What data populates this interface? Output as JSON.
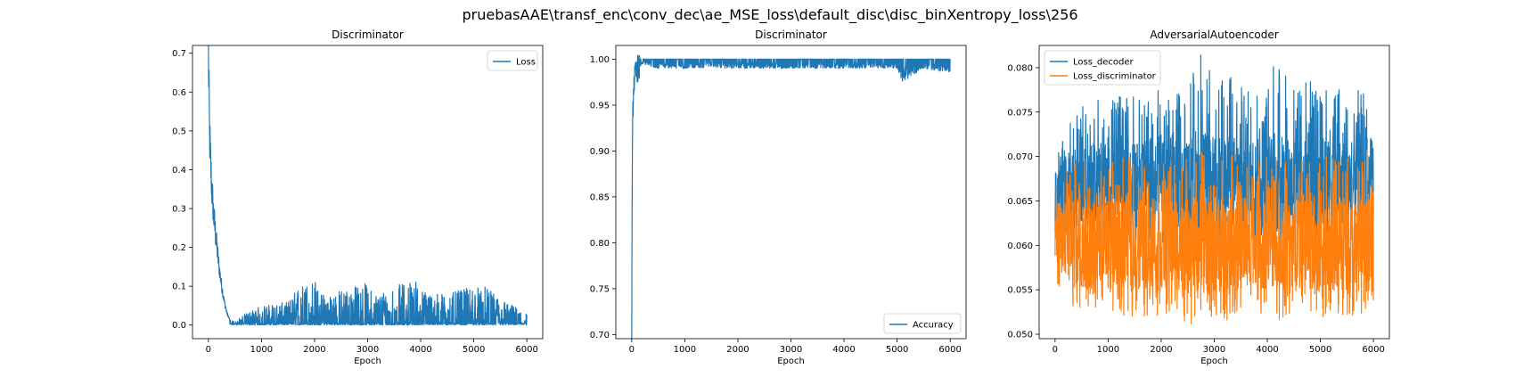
{
  "suptitle": "pruebasAAE\\transf_enc\\conv_dec\\ae_MSE_loss\\default_disc\\disc_binXentropy_loss\\256",
  "colors": {
    "blue": "#1f77b4",
    "orange": "#ff7f0e",
    "axis": "#000000"
  },
  "chart_data": [
    {
      "type": "line",
      "title": "Discriminator",
      "xlabel": "Epoch",
      "ylabel": "",
      "xlim": [
        -300,
        6300
      ],
      "ylim": [
        -0.035,
        0.72
      ],
      "xticks": [
        0,
        1000,
        2000,
        3000,
        4000,
        5000,
        6000
      ],
      "xtick_labels": [
        "0",
        "1000",
        "2000",
        "3000",
        "4000",
        "5000",
        "6000"
      ],
      "yticks": [
        0.0,
        0.1,
        0.2,
        0.3,
        0.4,
        0.5,
        0.6,
        0.7
      ],
      "ytick_labels": [
        "0.0",
        "0.1",
        "0.2",
        "0.3",
        "0.4",
        "0.5",
        "0.6",
        "0.7"
      ],
      "legend_loc": "upper right",
      "series": [
        {
          "name": "Loss",
          "color": "#1f77b4",
          "x": [
            0,
            10,
            20,
            40,
            60,
            80,
            100,
            130,
            160,
            200,
            250,
            300,
            350,
            400,
            500,
            700,
            1000,
            1500,
            1700,
            2000,
            2100,
            2500,
            3000,
            3100,
            3500,
            3900,
            4000,
            4500,
            5000,
            5200,
            5500,
            6000
          ],
          "y": [
            0.69,
            0.6,
            0.5,
            0.42,
            0.36,
            0.32,
            0.28,
            0.24,
            0.2,
            0.15,
            0.1,
            0.06,
            0.03,
            0.015,
            0.008,
            0.03,
            0.05,
            0.06,
            0.1,
            0.12,
            0.08,
            0.09,
            0.11,
            0.08,
            0.1,
            0.12,
            0.09,
            0.08,
            0.1,
            0.1,
            0.07,
            0.03
          ],
          "noise_floor": 0.0
        }
      ]
    },
    {
      "type": "line",
      "title": "Discriminator",
      "xlabel": "Epoch",
      "ylabel": "",
      "xlim": [
        -300,
        6300
      ],
      "ylim": [
        0.6955,
        1.015
      ],
      "xticks": [
        0,
        1000,
        2000,
        3000,
        4000,
        5000,
        6000
      ],
      "xtick_labels": [
        "0",
        "1000",
        "2000",
        "3000",
        "4000",
        "5000",
        "6000"
      ],
      "yticks": [
        0.7,
        0.75,
        0.8,
        0.85,
        0.9,
        0.95,
        1.0
      ],
      "ytick_labels": [
        "0.70",
        "0.75",
        "0.80",
        "0.85",
        "0.90",
        "0.95",
        "1.00"
      ],
      "legend_loc": "lower right",
      "series": [
        {
          "name": "Accuracy",
          "color": "#1f77b4",
          "x": [
            0,
            5,
            10,
            20,
            30,
            40,
            60,
            80,
            100,
            150,
            200,
            500,
            1000,
            2000,
            3000,
            4000,
            5000,
            5100,
            5500,
            6000
          ],
          "y": [
            0.71,
            0.8,
            0.87,
            0.94,
            0.96,
            0.975,
            0.98,
            0.985,
            0.99,
            0.99,
            0.995,
            0.99,
            0.99,
            0.99,
            0.99,
            0.99,
            0.99,
            0.975,
            0.99,
            0.985
          ],
          "upper": 1.0
        }
      ]
    },
    {
      "type": "line",
      "title": "AdversarialAutoencoder",
      "xlabel": "Epoch",
      "ylabel": "",
      "xlim": [
        -300,
        6300
      ],
      "ylim": [
        0.0495,
        0.0825
      ],
      "xticks": [
        0,
        1000,
        2000,
        3000,
        4000,
        5000,
        6000
      ],
      "xtick_labels": [
        "0",
        "1000",
        "2000",
        "3000",
        "4000",
        "5000",
        "6000"
      ],
      "yticks": [
        0.05,
        0.055,
        0.06,
        0.065,
        0.07,
        0.075,
        0.08
      ],
      "ytick_labels": [
        "0.050",
        "0.055",
        "0.060",
        "0.065",
        "0.070",
        "0.075",
        "0.080"
      ],
      "legend_loc": "upper left",
      "series": [
        {
          "name": "Loss_decoder",
          "color": "#1f77b4",
          "x": [
            0,
            100,
            500,
            1000,
            1500,
            2000,
            2500,
            2700,
            3000,
            3500,
            4000,
            4100,
            4500,
            5000,
            5500,
            6000
          ],
          "center": [
            0.064,
            0.066,
            0.067,
            0.067,
            0.067,
            0.067,
            0.067,
            0.067,
            0.067,
            0.067,
            0.067,
            0.067,
            0.067,
            0.067,
            0.067,
            0.067
          ],
          "low": [
            0.059,
            0.06,
            0.06,
            0.06,
            0.06,
            0.06,
            0.06,
            0.06,
            0.06,
            0.06,
            0.06,
            0.06,
            0.06,
            0.06,
            0.06,
            0.06
          ],
          "high": [
            0.069,
            0.072,
            0.076,
            0.077,
            0.077,
            0.078,
            0.077,
            0.082,
            0.079,
            0.079,
            0.078,
            0.081,
            0.078,
            0.079,
            0.078,
            0.079
          ]
        },
        {
          "name": "Loss_discriminator",
          "color": "#ff7f0e",
          "x": [
            0,
            100,
            500,
            1000,
            1500,
            2000,
            2500,
            3000,
            3500,
            4000,
            4500,
            5000,
            5500,
            6000
          ],
          "center": [
            0.061,
            0.061,
            0.06,
            0.06,
            0.06,
            0.06,
            0.06,
            0.06,
            0.06,
            0.06,
            0.06,
            0.06,
            0.06,
            0.06
          ],
          "low": [
            0.058,
            0.053,
            0.053,
            0.052,
            0.052,
            0.052,
            0.051,
            0.051,
            0.052,
            0.052,
            0.051,
            0.051,
            0.052,
            0.052
          ],
          "high": [
            0.068,
            0.068,
            0.07,
            0.07,
            0.07,
            0.07,
            0.07,
            0.071,
            0.07,
            0.07,
            0.07,
            0.07,
            0.07,
            0.071
          ]
        }
      ]
    }
  ]
}
